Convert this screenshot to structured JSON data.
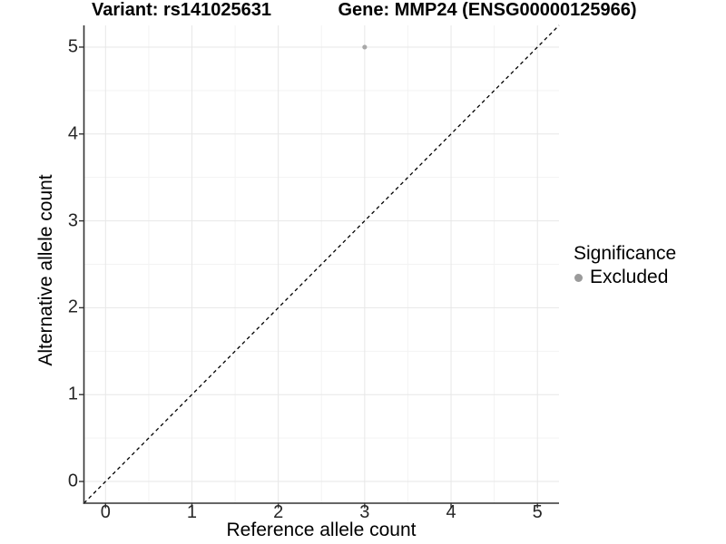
{
  "chart_data": {
    "type": "scatter",
    "titles": {
      "left": "Variant: rs141025631",
      "right": "Gene: MMP24 (ENSG00000125966)"
    },
    "xlabel": "Reference allele count",
    "ylabel": "Alternative allele count",
    "x_ticks": [
      0,
      1,
      2,
      3,
      4,
      5
    ],
    "y_ticks": [
      0,
      1,
      2,
      3,
      4,
      5
    ],
    "minor_x_ticks": [
      0.5,
      1.5,
      2.5,
      3.5,
      4.5
    ],
    "minor_y_ticks": [
      0.5,
      1.5,
      2.5,
      3.5,
      4.5
    ],
    "xlim": [
      -0.25,
      5.25
    ],
    "ylim": [
      -0.25,
      5.25
    ],
    "grid": true,
    "legend_position": "right",
    "series": [
      {
        "name": "Excluded",
        "color": "#a8a8a8",
        "points": [
          {
            "x": 3,
            "y": 5
          }
        ]
      }
    ],
    "identity_line": {
      "style": "dashed",
      "color": "#000000",
      "from": [
        -0.25,
        -0.25
      ],
      "to": [
        5.25,
        5.25
      ]
    },
    "legend": {
      "title": "Significance",
      "entries": [
        {
          "label": "Excluded",
          "color": "#9b9b9b"
        }
      ]
    },
    "colors": {
      "background": "#ffffff",
      "grid_major": "#e7e7e7",
      "grid_minor": "#f3f3f3",
      "axis": "#333333",
      "tick_label": "#262626",
      "title": "#000000"
    }
  }
}
